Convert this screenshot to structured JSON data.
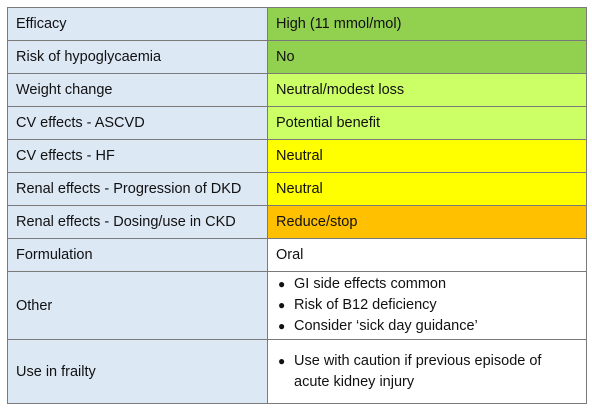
{
  "colors": {
    "label_bg": "#dde8f5",
    "dark_green": "#92d050",
    "light_green": "#ccff66",
    "yellow": "#ffff00",
    "orange": "#ffc000",
    "white": "#ffffff",
    "border": "#7a7a7a"
  },
  "rows": [
    {
      "label": "Efficacy",
      "value": "High (11 mmol/mol)",
      "color": "#92d050"
    },
    {
      "label": "Risk of hypoglycaemia",
      "value": "No",
      "color": "#92d050"
    },
    {
      "label": "Weight change",
      "value": "Neutral/modest loss",
      "color": "#ccff66"
    },
    {
      "label": "CV effects - ASCVD",
      "value": "Potential benefit",
      "color": "#ccff66"
    },
    {
      "label": "CV effects - HF",
      "value": "Neutral",
      "color": "#ffff00"
    },
    {
      "label": "Renal effects - Progression of DKD",
      "value": "Neutral",
      "color": "#ffff00"
    },
    {
      "label": "Renal effects - Dosing/use in CKD",
      "value": "Reduce/stop",
      "color": "#ffc000"
    },
    {
      "label": "Formulation",
      "value": "Oral",
      "color": "#ffffff"
    }
  ],
  "other": {
    "label": "Other",
    "bullets": [
      "GI side effects common",
      "Risk of B12 deficiency",
      "Consider ‘sick day guidance’"
    ]
  },
  "frailty": {
    "label": "Use in frailty",
    "bullets": [
      "Use with caution if previous episode of acute kidney injury"
    ]
  }
}
